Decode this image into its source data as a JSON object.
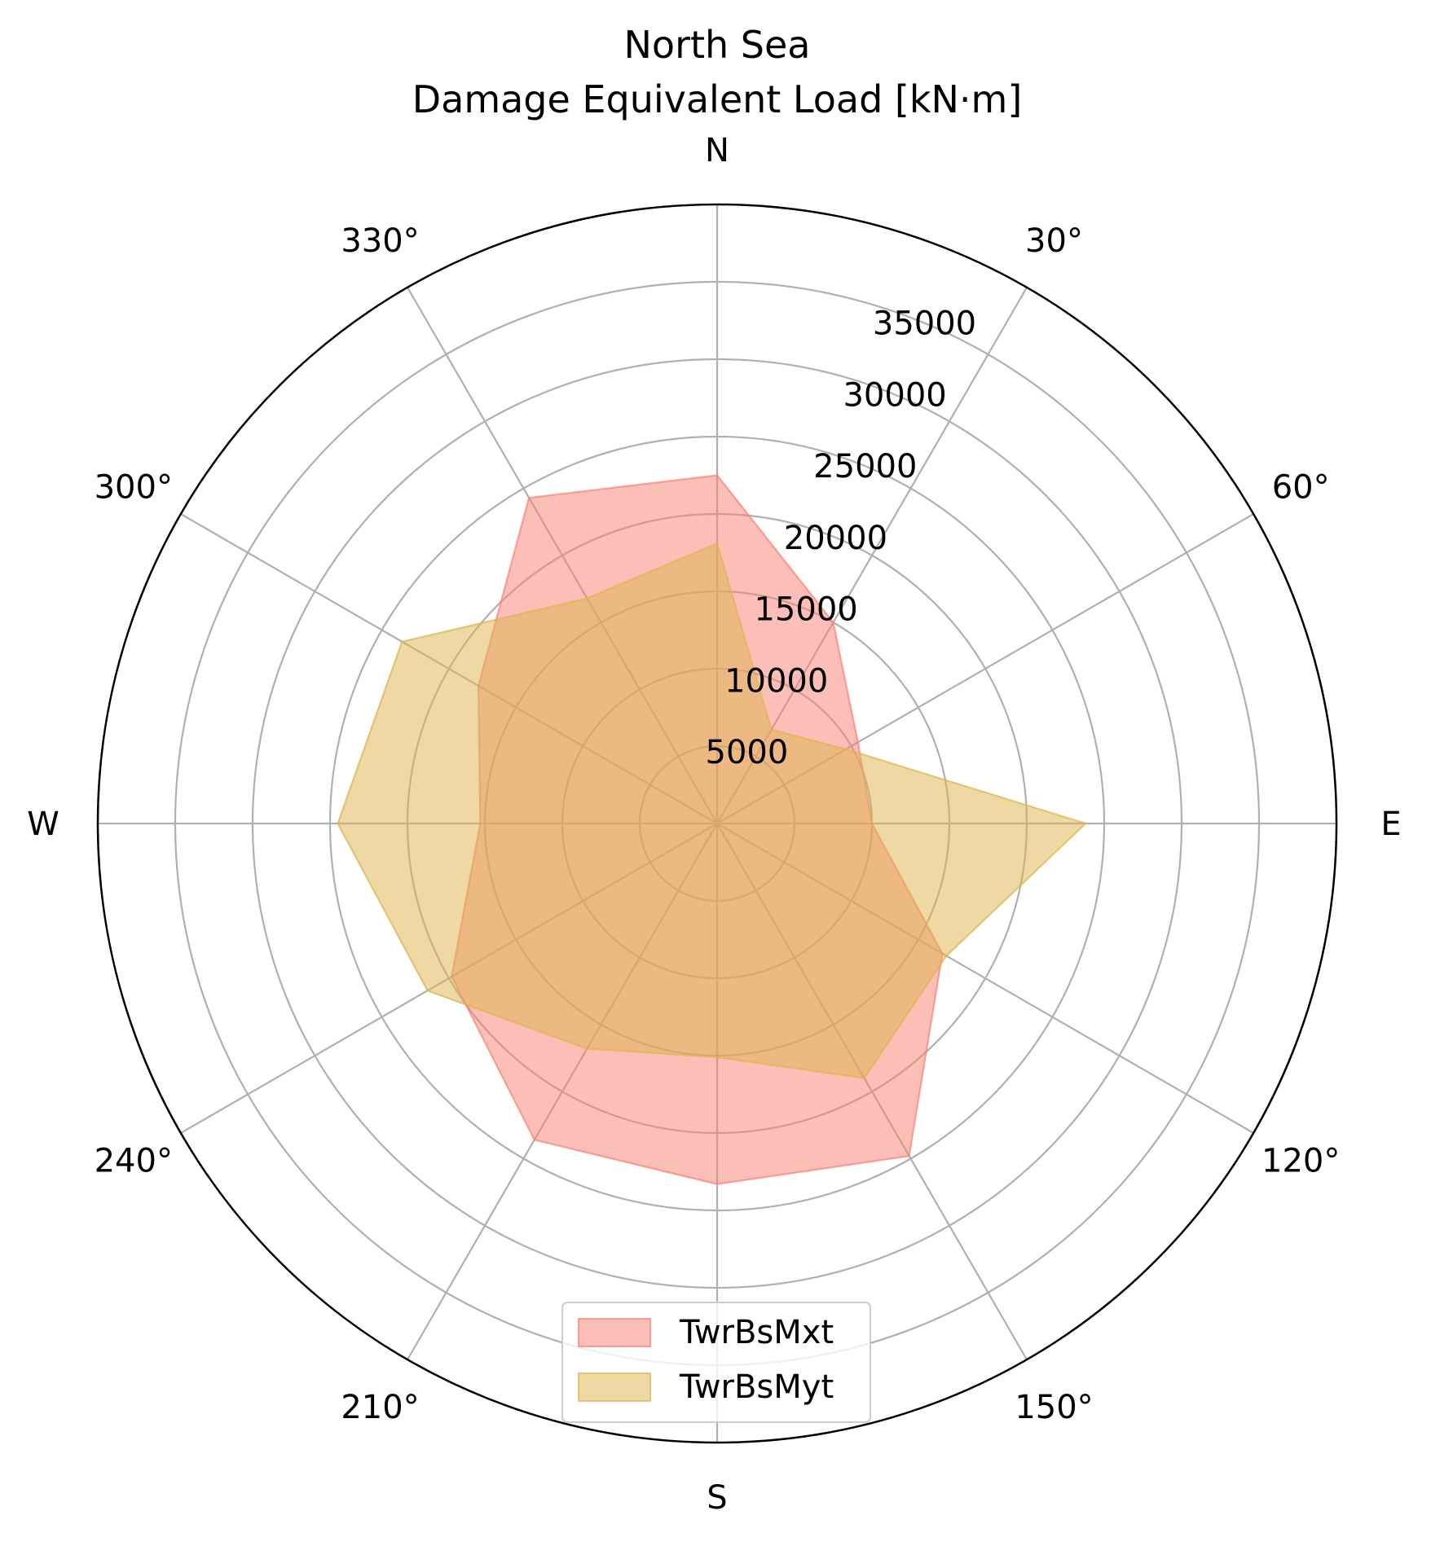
{
  "chart_data": {
    "type": "polar-area",
    "title_line1": "North Sea",
    "title_line2": "Damage Equivalent Load [kN·m]",
    "theta_zero": "north",
    "theta_direction": "clockwise",
    "theta_tick_labels": [
      "N",
      "30°",
      "60°",
      "E",
      "120°",
      "150°",
      "S",
      "210°",
      "240°",
      "W",
      "300°",
      "330°"
    ],
    "theta_ticks_deg": [
      0,
      30,
      60,
      90,
      120,
      150,
      180,
      210,
      240,
      270,
      300,
      330
    ],
    "r_tick_labels": [
      "5000",
      "10000",
      "15000",
      "20000",
      "25000",
      "30000",
      "35000"
    ],
    "r_ticks": [
      5000,
      10000,
      15000,
      20000,
      25000,
      30000,
      35000
    ],
    "rlim": [
      0,
      40000
    ],
    "grid": true,
    "legend_position": "bottom-center",
    "directions_deg": [
      0,
      30,
      60,
      90,
      120,
      150,
      180,
      210,
      240,
      270,
      300,
      330
    ],
    "series": [
      {
        "name": "TwrBsMxt",
        "color": "#fa8072",
        "values": [
          22500,
          15000,
          10500,
          10000,
          16800,
          24800,
          23300,
          23600,
          19800,
          15300,
          17800,
          24300
        ]
      },
      {
        "name": "TwrBsMyt",
        "color": "#ddb44b",
        "values": [
          18100,
          7000,
          9600,
          23800,
          17100,
          19000,
          15100,
          16800,
          21600,
          24500,
          23500,
          16800
        ]
      }
    ]
  }
}
